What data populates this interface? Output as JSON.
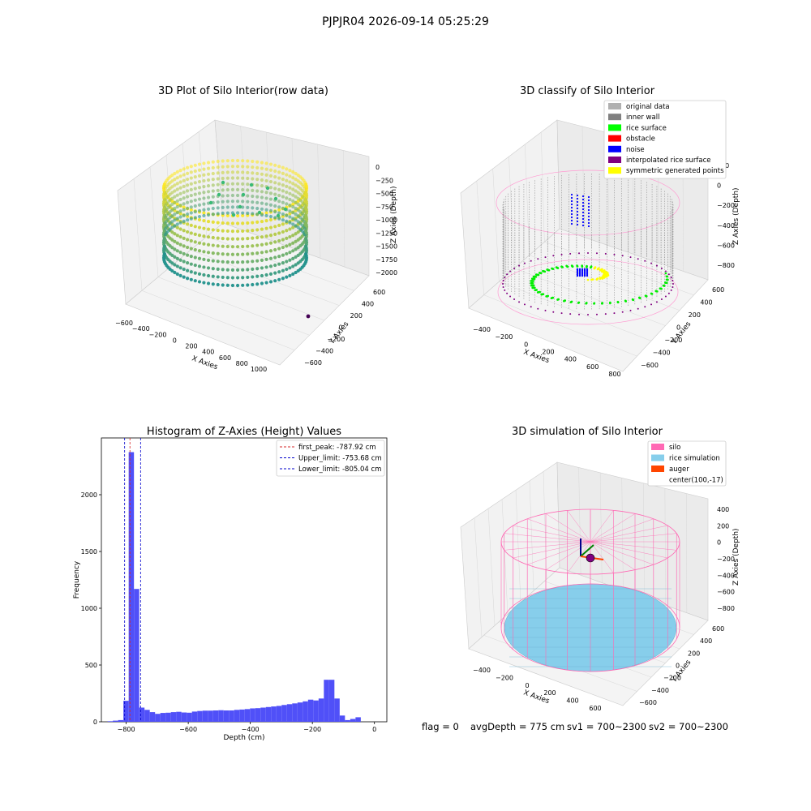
{
  "figure": {
    "suptitle": "PJPJR04 2026-09-14 05:25:29",
    "footer": {
      "flag": "flag = 0",
      "avg_depth": "avgDepth = 775 cm",
      "sv1": "sv1 = 700~2300",
      "sv2": "sv2 = 700~2300"
    }
  },
  "colors": {
    "hist_bar": "#5050f8",
    "first_peak": "#d62728",
    "limits": "#0000cc",
    "silo": "#ff69b4",
    "rice_simulation": "#87ceeb",
    "auger": "#ff4500",
    "raw_low": "#21918c",
    "raw_high": "#fde725"
  },
  "chart_data": [
    {
      "type": "scatter",
      "title": "3D Plot of Silo Interior(row data)",
      "projection": "3d",
      "xlabel": "X Axies",
      "ylabel": "Y Axies",
      "zlabel": "Z Axies (Depth)",
      "x_ticks": [
        "−600",
        "−400",
        "−200",
        "0",
        "200",
        "400",
        "600",
        "800",
        "1000"
      ],
      "y_ticks": [
        "−600",
        "−400",
        "−200",
        "0",
        "200",
        "400",
        "600"
      ],
      "z_ticks": [
        "0",
        "−250",
        "−500",
        "−750",
        "−1000",
        "−1250",
        "−1500",
        "−1750",
        "−2000"
      ],
      "xlim": [
        -650,
        1050
      ],
      "ylim": [
        -650,
        650
      ],
      "zlim": [
        -2000,
        0
      ],
      "colormap": "viridis",
      "shape": "cylindrical silo wall, radius ~590 cm, depth 0 to ~-1250 cm",
      "outlier_point": [
        1000,
        -150,
        -1900
      ]
    },
    {
      "type": "scatter",
      "title": "3D classify of Silo Interior",
      "projection": "3d",
      "xlabel": "X Axies",
      "ylabel": "Y Axies",
      "zlabel": "Z Axies (Depth)",
      "x_ticks": [
        "−400",
        "−200",
        "0",
        "200",
        "400",
        "600",
        "800"
      ],
      "y_ticks": [
        "−600",
        "−400",
        "−200",
        "0",
        "200",
        "400",
        "600"
      ],
      "z_ticks": [
        "200",
        "0",
        "−200",
        "−400",
        "−600",
        "−800"
      ],
      "xlim": [
        -550,
        800
      ],
      "ylim": [
        -650,
        650
      ],
      "zlim": [
        -900,
        300
      ],
      "legend_position": "upper right",
      "legend": [
        {
          "label": "original data",
          "color": "#b0b0b0"
        },
        {
          "label": "inner wall",
          "color": "#808080"
        },
        {
          "label": "rice surface",
          "color": "#00ff00"
        },
        {
          "label": "obstacle",
          "color": "#ff0000"
        },
        {
          "label": "noise",
          "color": "#0000ff"
        },
        {
          "label": "interpolated rice surface",
          "color": "#800080"
        },
        {
          "label": "symmetric generated points",
          "color": "#ffff00"
        }
      ]
    },
    {
      "type": "bar",
      "title": "Histogram of Z-Axies (Height) Values",
      "xlabel": "Depth (cm)",
      "ylabel": "Frequency",
      "xlim": [
        -880,
        40
      ],
      "ylim": [
        0,
        2500
      ],
      "x_ticks": [
        -800,
        -600,
        -400,
        -200,
        0
      ],
      "x_tick_labels": [
        "−800",
        "−600",
        "−400",
        "−200",
        "0"
      ],
      "y_ticks": [
        0,
        500,
        1000,
        1500,
        2000
      ],
      "bin_width": 17,
      "bin_start": -860,
      "values": [
        5,
        10,
        15,
        185,
        2375,
        1170,
        125,
        105,
        85,
        70,
        78,
        80,
        85,
        88,
        82,
        80,
        90,
        95,
        98,
        98,
        100,
        102,
        100,
        100,
        105,
        108,
        112,
        118,
        120,
        125,
        130,
        135,
        140,
        148,
        155,
        162,
        170,
        180,
        195,
        188,
        205,
        370,
        370,
        205,
        55,
        15,
        25,
        40
      ],
      "lines": [
        {
          "label": "first_peak: -787.92 cm",
          "x": -787.92,
          "style": "dashed",
          "color": "#d62728"
        },
        {
          "label": "Upper_limit: -753.68 cm",
          "x": -753.68,
          "style": "dashed",
          "color": "#0000cc"
        },
        {
          "label": "Lower_limit: -805.04 cm",
          "x": -805.04,
          "style": "dashed",
          "color": "#0000cc"
        }
      ],
      "legend_position": "upper right"
    },
    {
      "type": "scatter",
      "title": "3D simulation of Silo Interior",
      "projection": "3d",
      "xlabel": "X Axies",
      "ylabel": "Y Axies",
      "zlabel": "Z Axies (Depth)",
      "x_ticks": [
        "−400",
        "−200",
        "0",
        "200",
        "400",
        "600"
      ],
      "y_ticks": [
        "−600",
        "−400",
        "−200",
        "0",
        "200",
        "400",
        "600"
      ],
      "z_ticks": [
        "400",
        "200",
        "0",
        "−200",
        "−400",
        "−600",
        "−800"
      ],
      "xlim": [
        -550,
        750
      ],
      "ylim": [
        -650,
        650
      ],
      "zlim": [
        -900,
        450
      ],
      "legend_position": "upper right",
      "legend": [
        {
          "label": "silo",
          "color": "#ff69b4"
        },
        {
          "label": "rice simulation",
          "color": "#87ceeb"
        },
        {
          "label": "auger",
          "color": "#ff4500"
        },
        {
          "label": "center(100,-17)",
          "color": ""
        }
      ],
      "center": [
        100,
        -17
      ],
      "rice_depth": -775
    }
  ]
}
